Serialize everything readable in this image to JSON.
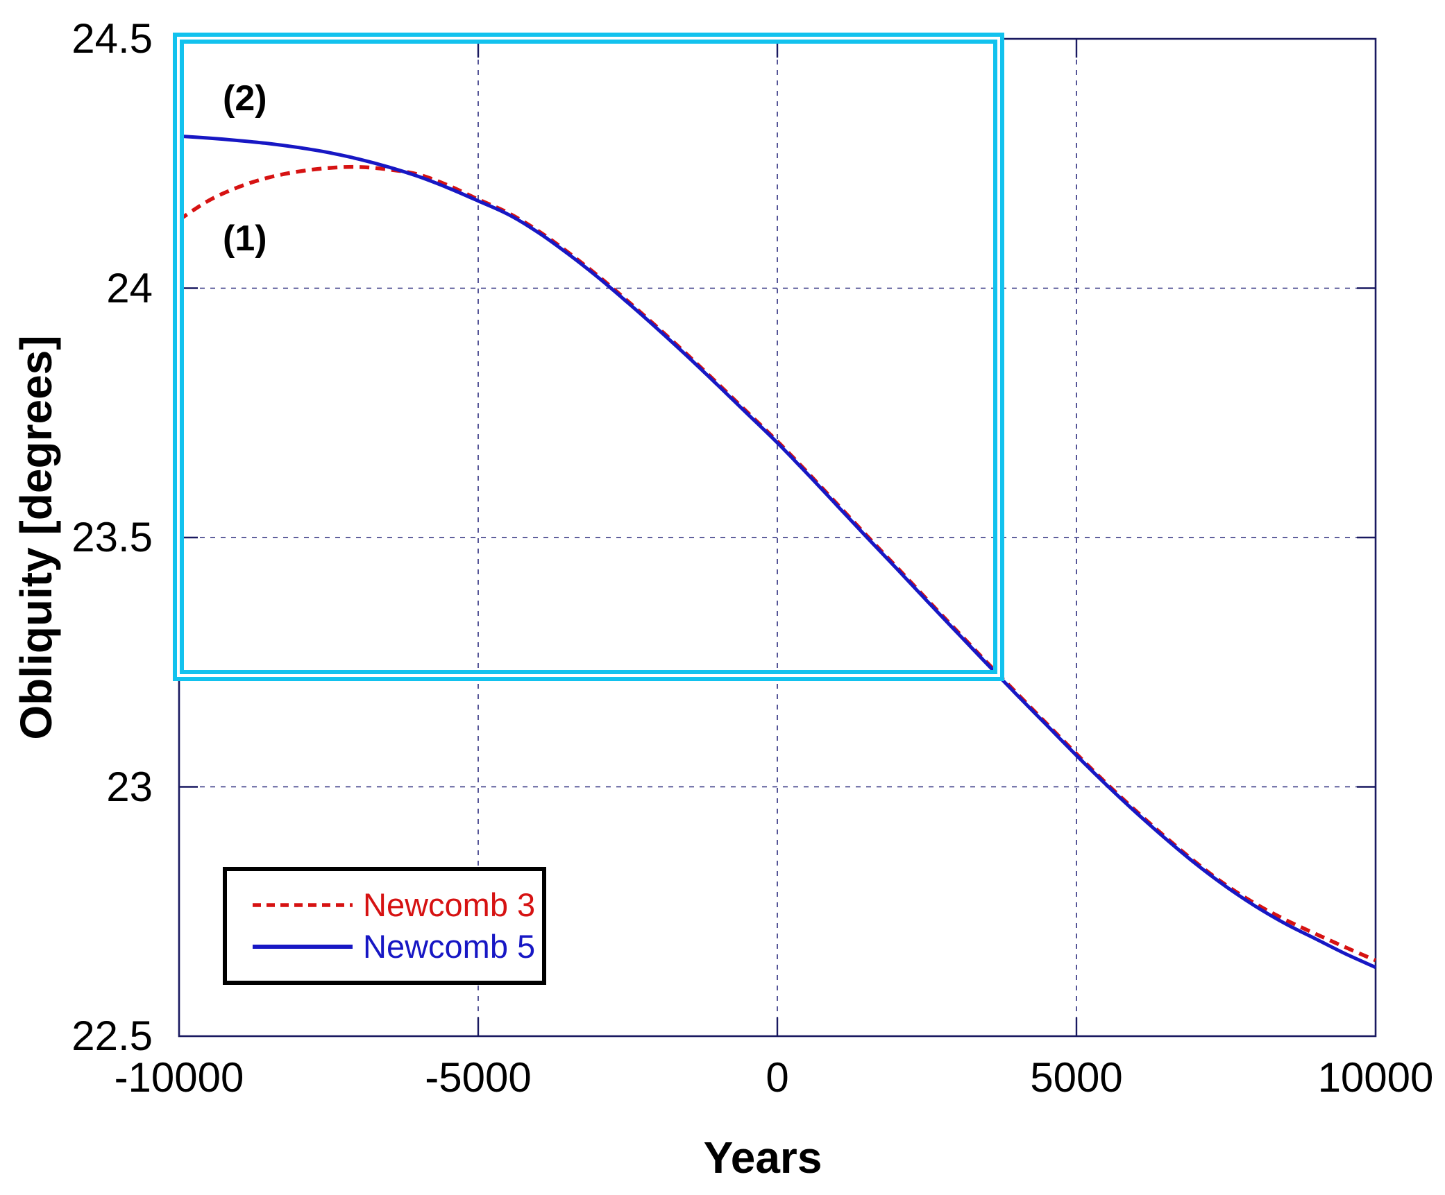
{
  "colors": {
    "newcomb3_red": "#d61212",
    "newcomb5_blue": "#1717c4",
    "highlight_cyan": "#12c2ee",
    "grid_navy": "#2b2b7d",
    "axis_navy": "#191960",
    "text_black": "#000000"
  },
  "legend": {
    "entries": [
      {
        "label": "Newcomb 3",
        "style": "dashed",
        "color": "#d61212"
      },
      {
        "label": "Newcomb 5",
        "style": "solid",
        "color": "#1717c4"
      }
    ]
  },
  "chart_data": {
    "type": "line",
    "title": "",
    "xlabel": "Years",
    "ylabel": "Obliquity [degrees]",
    "xlim": [
      -10000,
      10000
    ],
    "ylim": [
      22.5,
      24.5
    ],
    "x_ticks": [
      -10000,
      -5000,
      0,
      5000,
      10000
    ],
    "x_tick_labels": [
      "-10000",
      "-5000",
      "0",
      "5000",
      "10000"
    ],
    "y_ticks": [
      22.5,
      23,
      23.5,
      24,
      24.5
    ],
    "y_tick_labels": [
      "22.5",
      "23",
      "23.5",
      "24",
      "24.5"
    ],
    "grid": "dashed major gridlines, inward tick marks on all four spines",
    "legend_position": "lower-left",
    "x": [
      -10000,
      -9500,
      -9000,
      -8500,
      -8000,
      -7500,
      -7000,
      -6500,
      -6000,
      -5500,
      -5000,
      -4500,
      -4000,
      -3500,
      -3000,
      -2500,
      -2000,
      -1500,
      -1000,
      -500,
      0,
      500,
      1000,
      1500,
      2000,
      2500,
      3000,
      3500,
      4000,
      4500,
      5000,
      5500,
      6000,
      6500,
      7000,
      7500,
      8000,
      8500,
      9000,
      9500,
      10000
    ],
    "series": [
      {
        "name": "Newcomb 3",
        "color": "#d61212",
        "style": "dashed",
        "values": [
          24.137,
          24.176,
          24.203,
          24.222,
          24.234,
          24.241,
          24.243,
          24.238,
          24.228,
          24.206,
          24.178,
          24.151,
          24.115,
          24.072,
          24.025,
          23.974,
          23.921,
          23.866,
          23.809,
          23.751,
          23.693,
          23.631,
          23.567,
          23.503,
          23.44,
          23.376,
          23.313,
          23.25,
          23.188,
          23.127,
          23.066,
          23.007,
          22.951,
          22.898,
          22.848,
          22.803,
          22.765,
          22.733,
          22.705,
          22.678,
          22.652
        ]
      },
      {
        "name": "Newcomb 5",
        "color": "#1717c4",
        "style": "solid",
        "values": [
          24.305,
          24.301,
          24.296,
          24.29,
          24.282,
          24.272,
          24.259,
          24.243,
          24.224,
          24.201,
          24.175,
          24.148,
          24.112,
          24.069,
          24.022,
          23.971,
          23.918,
          23.863,
          23.806,
          23.748,
          23.69,
          23.628,
          23.564,
          23.5,
          23.437,
          23.373,
          23.31,
          23.247,
          23.185,
          23.124,
          23.063,
          23.004,
          22.948,
          22.895,
          22.845,
          22.8,
          22.76,
          22.725,
          22.695,
          22.665,
          22.638
        ]
      }
    ],
    "annotations": [
      {
        "text": "(1)",
        "x": -8900,
        "y": 24.1,
        "refers_to": "Newcomb 3"
      },
      {
        "text": "(2)",
        "x": -8900,
        "y": 24.38,
        "refers_to": "Newcomb 5"
      }
    ],
    "highlight_box": {
      "x0": -10100,
      "x1": 3790,
      "y0": 23.212,
      "y1": 24.513
    }
  }
}
